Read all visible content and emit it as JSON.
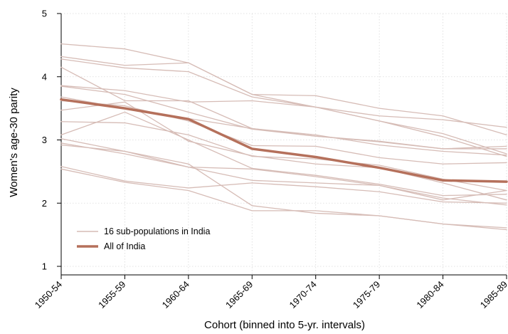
{
  "chart_data": {
    "type": "line",
    "title": "",
    "xlabel": "Cohort (binned into 5-yr. intervals)",
    "ylabel": "Women's age-30 parity",
    "categories": [
      "1950-54",
      "1955-59",
      "1960-64",
      "1965-69",
      "1970-74",
      "1975-79",
      "1980-84",
      "1985-89"
    ],
    "ylim": [
      1,
      5
    ],
    "yticks": [
      "1",
      "2",
      "3",
      "4",
      "5"
    ],
    "grid": true,
    "legend_position": "bottom-left",
    "legend": [
      "16 sub-populations in India",
      "All of India"
    ],
    "colors": {
      "subpop": "#d6bcb6",
      "india": "#b5705b"
    },
    "series": [
      {
        "group": "subpop",
        "values": [
          4.52,
          4.44,
          4.22,
          3.72,
          3.52,
          3.38,
          3.32,
          3.2
        ]
      },
      {
        "group": "subpop",
        "values": [
          4.32,
          4.18,
          4.22,
          3.72,
          3.7,
          3.5,
          3.38,
          3.08
        ]
      },
      {
        "group": "subpop",
        "values": [
          4.28,
          4.14,
          4.08,
          3.68,
          3.52,
          3.3,
          3.1,
          2.78
        ]
      },
      {
        "group": "subpop",
        "values": [
          4.15,
          3.62,
          3.62,
          3.18,
          3.06,
          2.98,
          2.86,
          2.9
        ]
      },
      {
        "group": "subpop",
        "values": [
          3.86,
          3.78,
          3.6,
          3.62,
          3.52,
          3.3,
          3.05,
          2.74
        ]
      },
      {
        "group": "subpop",
        "values": [
          3.85,
          3.72,
          3.44,
          3.17,
          3.06,
          2.97,
          2.86,
          2.86
        ]
      },
      {
        "group": "subpop",
        "values": [
          3.62,
          3.54,
          3.3,
          2.91,
          2.9,
          2.72,
          2.62,
          2.64
        ]
      },
      {
        "group": "subpop",
        "values": [
          3.47,
          3.6,
          2.98,
          2.75,
          2.62,
          2.56,
          2.32,
          2.05
        ]
      },
      {
        "group": "subpop",
        "values": [
          3.29,
          3.27,
          3.08,
          2.74,
          2.7,
          2.6,
          2.38,
          2.2
        ]
      },
      {
        "group": "subpop",
        "values": [
          3.08,
          3.44,
          3.0,
          2.55,
          2.44,
          2.3,
          2.12,
          2.14
        ]
      },
      {
        "group": "subpop",
        "values": [
          2.95,
          2.78,
          2.57,
          2.54,
          2.42,
          2.28,
          2.08,
          1.97
        ]
      },
      {
        "group": "subpop",
        "values": [
          2.92,
          2.82,
          2.57,
          2.36,
          2.32,
          2.28,
          2.05,
          2.2
        ]
      },
      {
        "group": "subpop",
        "values": [
          2.58,
          2.35,
          2.24,
          2.32,
          2.26,
          2.18,
          2.02,
          2.0
        ]
      },
      {
        "group": "subpop",
        "values": [
          2.54,
          2.33,
          2.2,
          1.88,
          1.88,
          1.8,
          1.67,
          1.61
        ]
      },
      {
        "group": "subpop",
        "values": [
          3.68,
          3.5,
          3.34,
          3.18,
          3.08,
          2.92,
          2.82,
          2.76
        ]
      },
      {
        "group": "subpop",
        "values": [
          3.02,
          2.82,
          2.62,
          1.96,
          1.84,
          1.8,
          1.67,
          1.58
        ]
      },
      {
        "group": "india",
        "name": "All of India",
        "values": [
          3.64,
          3.5,
          3.33,
          2.86,
          2.73,
          2.56,
          2.36,
          2.34
        ]
      }
    ]
  }
}
